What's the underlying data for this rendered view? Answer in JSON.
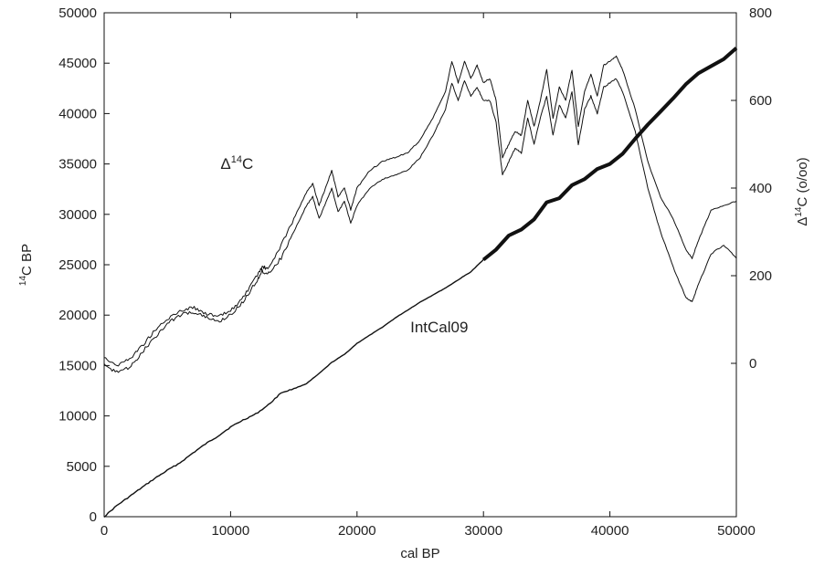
{
  "chart_data": {
    "type": "line",
    "xlabel": "cal BP",
    "ylabel_left": {
      "sup": "14",
      "text": "C BP"
    },
    "ylabel_right": {
      "delta": "Δ",
      "sup": "14",
      "text": "C (o/oo)"
    },
    "xlim": [
      0,
      50000
    ],
    "ylim_left": [
      0,
      50000
    ],
    "ylim_right": [
      -350,
      800
    ],
    "x_ticks": [
      "0",
      "10000",
      "20000",
      "30000",
      "40000",
      "50000"
    ],
    "y_ticks_left": [
      "0",
      "5000",
      "10000",
      "15000",
      "20000",
      "25000",
      "30000",
      "35000",
      "40000",
      "45000",
      "50000"
    ],
    "y_ticks_right": [
      "0",
      "200",
      "400",
      "600",
      "800"
    ],
    "grid": false,
    "annotations": [
      {
        "id": "delta-label",
        "delta": "Δ",
        "sup": "14",
        "text": "C",
        "x": 10500,
        "y": 34500
      },
      {
        "id": "intcal-label",
        "text": "IntCal09",
        "x": 26500,
        "y": 18300
      }
    ],
    "series": [
      {
        "name": "IntCal09",
        "axis": "left",
        "x": [
          0,
          1000,
          2000,
          3000,
          4000,
          5000,
          6000,
          7000,
          8000,
          9000,
          10000,
          11000,
          12000,
          13000,
          14000,
          15000,
          16000,
          17000,
          18000,
          19000,
          20000,
          21000,
          22000,
          23000,
          24000,
          25000,
          26000,
          27000,
          28000,
          29000,
          30000,
          31000,
          32000,
          33000,
          34000,
          35000,
          36000,
          37000,
          38000,
          39000,
          40000,
          41000,
          42000,
          43000,
          44000,
          45000,
          46000,
          47000,
          48000,
          49000,
          50000
        ],
        "values": [
          0,
          1100,
          2000,
          2900,
          3800,
          4600,
          5350,
          6300,
          7200,
          8000,
          8900,
          9600,
          10200,
          11100,
          12300,
          12700,
          13200,
          14200,
          15300,
          16100,
          17200,
          18000,
          18800,
          19700,
          20500,
          21300,
          22000,
          22700,
          23500,
          24300,
          25500,
          26500,
          27900,
          28500,
          29500,
          31200,
          31600,
          32900,
          33500,
          34500,
          35000,
          36000,
          37500,
          38900,
          40200,
          41500,
          42900,
          44000,
          44700,
          45400,
          46500
        ]
      },
      {
        "name": "Δ14C upper",
        "axis": "right",
        "x": [
          0,
          1000,
          2000,
          3000,
          4000,
          5000,
          6000,
          7000,
          8000,
          9000,
          10000,
          11000,
          12000,
          12500,
          13000,
          14000,
          15000,
          16000,
          16500,
          17000,
          17500,
          18000,
          18500,
          19000,
          19500,
          20000,
          21000,
          22000,
          23000,
          24000,
          25000,
          26000,
          27000,
          27500,
          28000,
          28500,
          29000,
          29500,
          30000,
          30500,
          31000,
          31500,
          32000,
          32500,
          33000,
          33500,
          34000,
          34500,
          35000,
          35500,
          36000,
          36500,
          37000,
          37500,
          38000,
          38500,
          39000,
          39500,
          40000,
          40500,
          41000,
          42000,
          43000,
          44000,
          45000,
          46000,
          46500,
          47000,
          48000,
          49000,
          50000
        ],
        "values": [
          15,
          -5,
          10,
          40,
          75,
          100,
          120,
          128,
          115,
          105,
          120,
          150,
          195,
          220,
          215,
          270,
          330,
          390,
          410,
          360,
          400,
          440,
          380,
          400,
          350,
          400,
          440,
          460,
          470,
          480,
          510,
          560,
          620,
          690,
          640,
          690,
          650,
          680,
          640,
          650,
          600,
          470,
          500,
          530,
          520,
          600,
          540,
          600,
          670,
          560,
          630,
          600,
          670,
          540,
          620,
          660,
          610,
          680,
          690,
          700,
          670,
          580,
          460,
          380,
          330,
          260,
          240,
          280,
          350,
          360,
          370
        ]
      },
      {
        "name": "Δ14C lower",
        "axis": "right",
        "x": [
          0,
          1000,
          2000,
          3000,
          4000,
          5000,
          6000,
          7000,
          8000,
          9000,
          10000,
          11000,
          12000,
          12500,
          13000,
          14000,
          15000,
          16000,
          16500,
          17000,
          17500,
          18000,
          18500,
          19000,
          19500,
          20000,
          21000,
          22000,
          23000,
          24000,
          25000,
          26000,
          27000,
          27500,
          28000,
          28500,
          29000,
          29500,
          30000,
          30500,
          31000,
          31500,
          32000,
          32500,
          33000,
          33500,
          34000,
          34500,
          35000,
          35500,
          36000,
          36500,
          37000,
          37500,
          38000,
          38500,
          39000,
          39500,
          40000,
          40500,
          41000,
          42000,
          43000,
          44000,
          45000,
          46000,
          46500,
          47000,
          48000,
          49000,
          50000
        ],
        "values": [
          -5,
          -20,
          -10,
          25,
          60,
          90,
          110,
          118,
          105,
          95,
          110,
          140,
          185,
          210,
          205,
          240,
          300,
          360,
          380,
          330,
          365,
          400,
          345,
          370,
          320,
          360,
          400,
          420,
          430,
          440,
          470,
          520,
          580,
          640,
          600,
          645,
          610,
          630,
          600,
          600,
          550,
          430,
          460,
          490,
          480,
          560,
          500,
          560,
          610,
          520,
          590,
          560,
          620,
          500,
          580,
          610,
          570,
          630,
          640,
          650,
          620,
          530,
          400,
          300,
          220,
          150,
          140,
          180,
          250,
          270,
          240
        ]
      }
    ]
  }
}
